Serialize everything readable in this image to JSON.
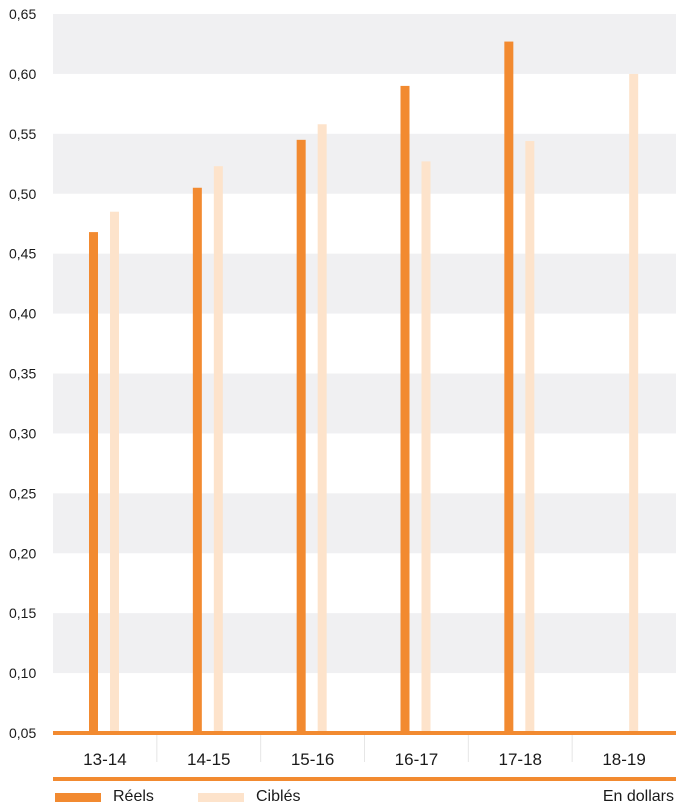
{
  "chart_data": {
    "type": "bar",
    "categories": [
      "13-14",
      "14-15",
      "15-16",
      "16-17",
      "17-18",
      "18-19"
    ],
    "series": [
      {
        "name": "Réels",
        "values": [
          0.468,
          0.505,
          0.545,
          0.59,
          0.627,
          null
        ]
      },
      {
        "name": "Ciblés",
        "values": [
          0.485,
          0.523,
          0.558,
          0.527,
          0.544,
          0.6
        ]
      }
    ],
    "y_ticks": [
      "0,05",
      "0,10",
      "0,15",
      "0,20",
      "0,25",
      "0,30",
      "0,35",
      "0,40",
      "0,45",
      "0,50",
      "0,55",
      "0,60",
      "0,65"
    ],
    "ylim": [
      0.05,
      0.65
    ],
    "grid": "alternating horizontal bands",
    "legend_position": "bottom-left",
    "unit_note": "En dollars"
  },
  "colors": {
    "reels": "#f28a30",
    "cibles": "#fde3cb",
    "band": "#f0f0f2",
    "axis": "#f28a30"
  }
}
